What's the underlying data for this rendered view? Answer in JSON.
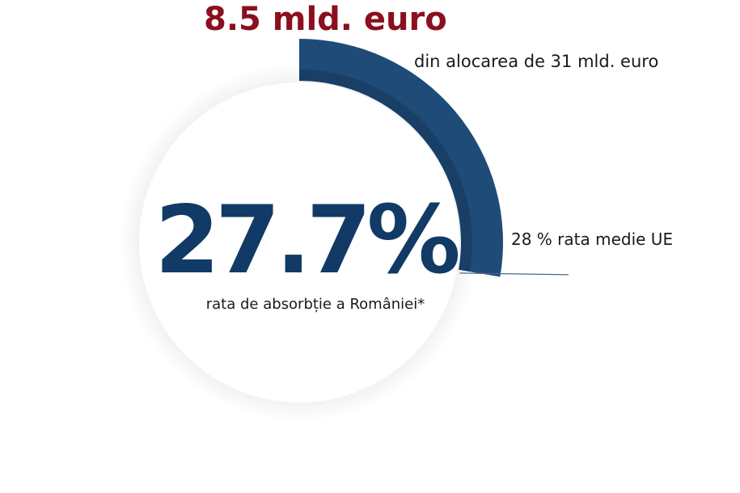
{
  "headline": "8.5 mld. euro",
  "allocation_text": "din alocarea de 31 mld. euro",
  "eu_average_text": "28 % rata medie UE",
  "absorption_rate_text": "27.7%",
  "absorption_caption": "rata de absorbție a României*",
  "colors": {
    "headline": "#8b0f1e",
    "arc": "#1f4b78",
    "rate_text": "#123a66",
    "marker_line": "#4a6687"
  },
  "chart_data": {
    "type": "gauge",
    "value": 27.7,
    "reference_value": 28,
    "max": 100,
    "unit": "%",
    "absorbed_amount": 8.5,
    "total_allocation": 31,
    "amount_unit": "mld. euro"
  }
}
